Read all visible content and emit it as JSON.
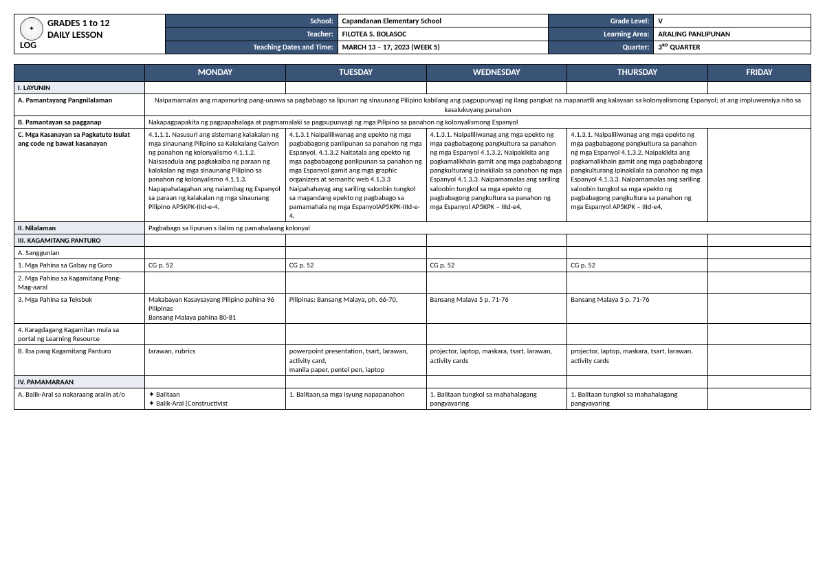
{
  "header": {
    "title_line1": "GRADES 1 to 12",
    "title_line2": "DAILY LESSON",
    "title_line3": "LOG",
    "labels": {
      "school": "School:",
      "teacher": "Teacher:",
      "dates": "Teaching Dates and Time:",
      "grade": "Grade Level:",
      "area": "Learning Area:",
      "quarter": "Quarter:"
    },
    "values": {
      "school": "Capandanan Elementary School",
      "teacher": "FILOTEA S. BOLASOC",
      "dates": "MARCH 13 – 17, 2023 (WEEK 5)",
      "grade": "V",
      "area": "ARALING PANLIPUNAN",
      "quarter": "3ᴿᴰ QUARTER"
    }
  },
  "days": [
    "MONDAY",
    "TUESDAY",
    "WEDNESDAY",
    "THURSDAY",
    "FRIDAY"
  ],
  "sections": {
    "layunin": "I. LAYUNIN",
    "pamantayang": "A. Pamantayang Pangnilalaman",
    "pagganap": "B. Pamantayan sa pagganap",
    "kasanayan": "C. Mga Kasanayan sa Pagkatuto Isulat ang code ng bawat kasanayan",
    "nilalaman": "II. Nilalaman",
    "kagamitan": "III. KAGAMITANG PANTURO",
    "sanggunian": "A. Sanggunian",
    "gabay": "1. Mga Pahina sa Gabay ng Guro",
    "kagamitang_pang": "2. Mga Pahina sa Kagamitang Pang-\n   Mag-aaral",
    "teksbuk": "3. Mga Pahina sa Teksbuk",
    "karagdagang": "4. Karagdagang Kagamitan mula sa\n   portal ng Learning Resource",
    "ibapang": "B. Iba pang Kagamitang Panturo",
    "pamamaraan": "IV. PAMAMARAAN",
    "balikaral": "A. Balik-Aral sa nakaraang aralin at/o"
  },
  "content": {
    "pamantayang_text": "Naipamamalas ang mapanuring pang-unawa sa pagbabago sa lipunan ng sinaunang Pilipino kabilang ang pagpupunyagi ng ilang pangkat na mapanatili ang kalayaan sa kolonyalismong Espanyol; at ang impluwensiya nito sa kasalukuyang panahon",
    "pagganap_text": "Nakapagpapakita ng pagpapahalaga at pagmamalaki sa pagpupunyagi ng mga Pilipino sa panahon ng kolonyalismong Espanyol",
    "kasanayan": {
      "mon": "4.1.1.1. Nasusuri ang sistemang kalakalan ng mga sinaunang Pilipino sa\nKalakalang Galyon ng panahon ng kolonyalismo\n4.1.1.2. Naisasadula ang pagkakaiba ng paraan ng kalakalan ng mga\nsinaunang Pilipino sa panahon ng kolonyalismo\n4.1.1.3. Napapahalagahan ang naiambag ng Espanyol sa paraan ng kalakalan\nng mga sinaunang Pilipino\nAP5KPK-IIId-e-4,",
      "tue": "4.1.3.1 Naipaliliwanag ang epekto ng mga pagbabagong panlipunan sa\npanahon ng mga Espanyol.\n4.1.3.2 Naitatala ang epekto ng mga pagbabagong panlipunan sa panahon ng\nmga Espanyol gamit ang mga graphic organizers at semantic web\n4.1.3.3 Naipahahayag ang sariling saloobin tungkol sa magandang epekto ng\npagbabago sa pamamahala ng mga EspanyolAP5KPK-IIId-e-4,",
      "wed": "4.1.3.1. Naipaliliwanag ang mga epekto ng mga pagbabagong pangkultura sa\npanahon ng mga Espanyol\n4.1.3.2. Naipakikita ang pagkamalikhain gamit ang mga pagbabagong\npangkulturang ipinakilala sa panahon ng mga Espanyol\n4.1.3.3. Naipamamalas ang sariling saloobin tungkol sa mga epekto ng\npagbabagong pangkultura sa panahon ng mga Espanyol AP5KPK – IIId-e4,",
      "thu": "4.1.3.1. Naipaliliwanag ang mga epekto ng mga pagbabagong pangkultura sa\npanahon ng mga Espanyol\n4.1.3.2. Naipakikita ang pagkamalikhain gamit ang mga pagbabagong\npangkulturang ipinakilala sa panahon ng mga Espanyol\n4.1.3.3. Naipamamalas ang sariling saloobin tungkol sa mga epekto ng\n   pagbabagong pangkultura sa\npanahon ng mga Espanyol AP5KPK – IIId-e4,"
    },
    "nilalaman_text": "Pagbabago sa lipunan s ilalim ng pamahalaang kolonyal",
    "gabay": {
      "mon": "CG p. 52",
      "tue": "CG p. 52",
      "wed": "CG p. 52",
      "thu": "CG p. 52"
    },
    "teksbuk": {
      "mon": "Makabayan Kasaysayang Pilipino pahina 96 Pilipinas\nBansang Malaya pahina 80-81",
      "tue": "Pilipinas: Bansang Malaya, ph. 66-70,",
      "wed": "Bansang Malaya 5 p. 71-76",
      "thu": "Bansang Malaya 5 p. 71-76"
    },
    "ibapang": {
      "mon": "larawan, rubrics",
      "tue": "powerpoint presentation, tsart, larawan, activity card,\nmanila paper, pentel pen, laptop",
      "wed": "projector, laptop, maskara, tsart, larawan,\nactivity cards",
      "thu": "projector, laptop, maskara, tsart, larawan,\nactivity cards"
    },
    "balikaral": {
      "mon": "✦ Balitaan\n✦ Balik-Aral (Constructivist",
      "tue": "1. Balitaan.sa mga isyung napapanahon",
      "wed": "1. Balitaan tungkol sa mahahalagang pangyayaring",
      "thu": "1. Balitaan tungkol sa mahahalagang pangyayaring"
    }
  },
  "style": {
    "header_bg": "#3a5478",
    "section_bg": "#e8ecf2",
    "border": "#000000"
  }
}
